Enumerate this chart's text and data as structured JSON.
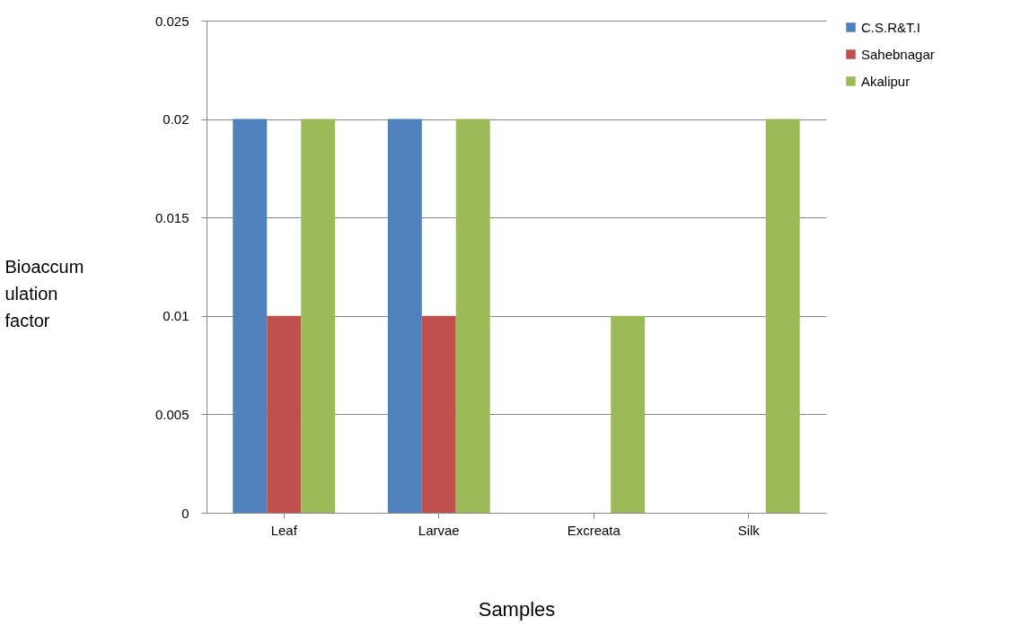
{
  "chart_data": {
    "type": "bar",
    "xlabel": "Samples",
    "ylabel": "Bioaccumulation factor",
    "categories": [
      "Leaf",
      "Larvae",
      "Excreata",
      "Silk"
    ],
    "series": [
      {
        "name": "C.S.R&T.I",
        "color": "#4f81bd",
        "values": [
          0.02,
          0.02,
          0,
          0
        ]
      },
      {
        "name": "Sahebnagar",
        "color": "#c0504d",
        "values": [
          0.01,
          0.01,
          0,
          0
        ]
      },
      {
        "name": "Akalipur",
        "color": "#9bbb59",
        "values": [
          0.02,
          0.02,
          0.01,
          0.02
        ]
      }
    ],
    "ylim": [
      0,
      0.025
    ],
    "yticks": [
      0,
      0.005,
      0.01,
      0.015,
      0.02,
      0.025
    ],
    "grid": "y",
    "legend": "right"
  }
}
